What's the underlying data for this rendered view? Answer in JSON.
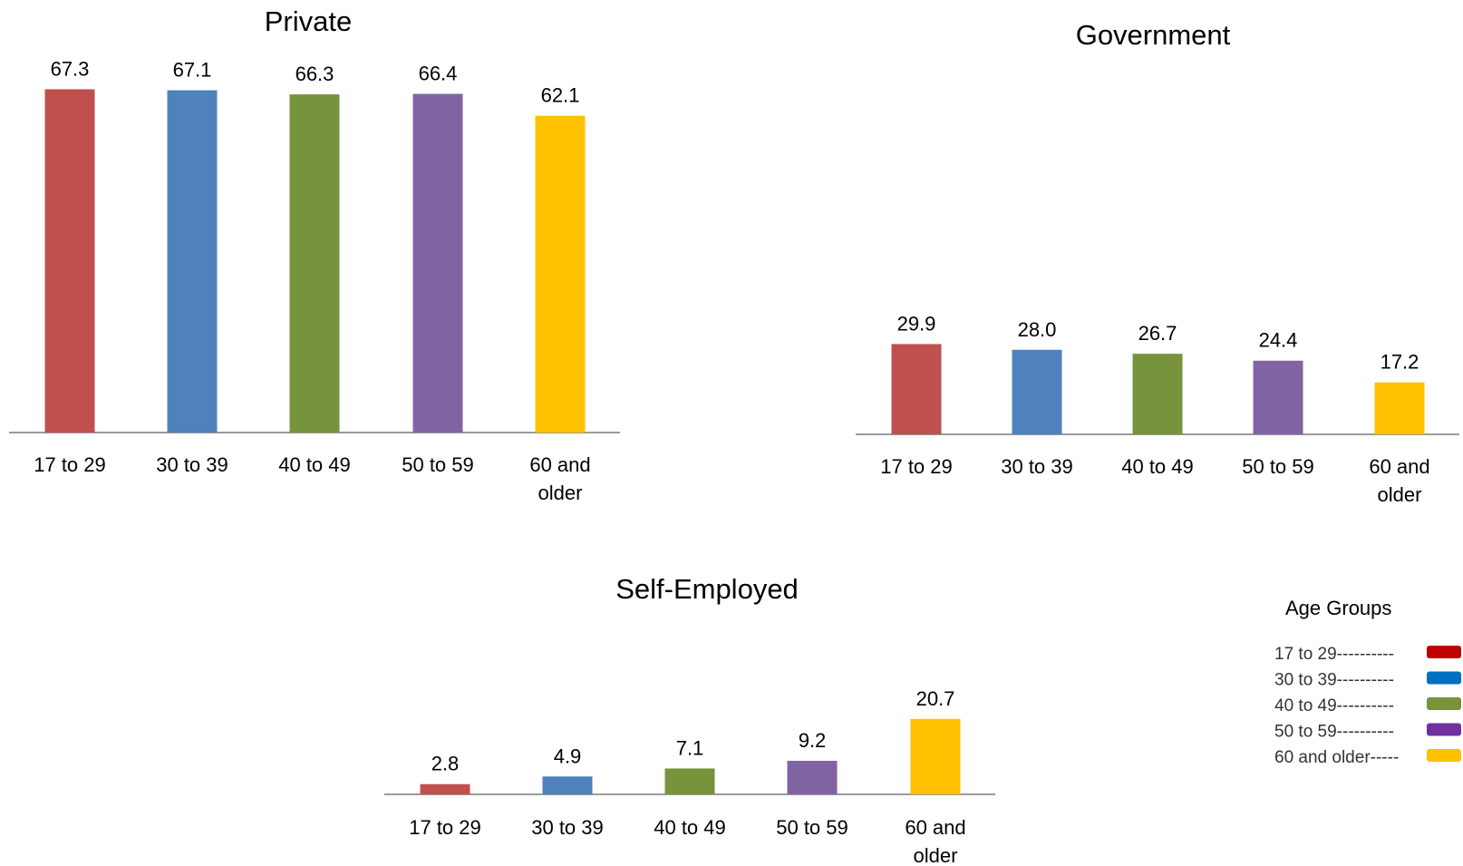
{
  "chart_data": [
    {
      "type": "bar",
      "title": "Private",
      "categories": [
        "17 to 29",
        "30 to 39",
        "40 to 49",
        "50 to 59",
        "60 and older"
      ],
      "values": [
        67.3,
        67.1,
        66.3,
        66.4,
        62.1
      ],
      "value_labels": [
        "67.3",
        "67.1",
        "66.3",
        "66.4",
        "62.1"
      ],
      "xlabel": "",
      "ylabel": ""
    },
    {
      "type": "bar",
      "title": "Government",
      "categories": [
        "17 to 29",
        "30 to 39",
        "40 to 49",
        "50 to 59",
        "60 and older"
      ],
      "values": [
        29.9,
        28.0,
        26.7,
        24.4,
        17.2
      ],
      "value_labels": [
        "29.9",
        "28.0",
        "26.7",
        "24.4",
        "17.2"
      ],
      "xlabel": "",
      "ylabel": ""
    },
    {
      "type": "bar",
      "title": "Self-Employed",
      "categories": [
        "17 to 29",
        "30 to 39",
        "40 to 49",
        "50 to 59",
        "60 and older"
      ],
      "values": [
        2.8,
        4.9,
        7.1,
        9.2,
        20.7
      ],
      "value_labels": [
        "2.8",
        "4.9",
        "7.1",
        "9.2",
        "20.7"
      ],
      "xlabel": "",
      "ylabel": ""
    }
  ],
  "colors": {
    "bars": [
      "#c0504d",
      "#4f81bd",
      "#77933c",
      "#8064a2",
      "#ffc000"
    ],
    "legend_swatches": [
      "#c00000",
      "#0070c0",
      "#77933c",
      "#7030a0",
      "#ffc000"
    ],
    "axis": "#9b9b9b"
  },
  "legend": {
    "title": "Age Groups",
    "items": [
      "17 to 29----------",
      "30 to 39----------",
      "40 to 49----------",
      "50 to 59----------",
      "60 and older-----"
    ]
  }
}
